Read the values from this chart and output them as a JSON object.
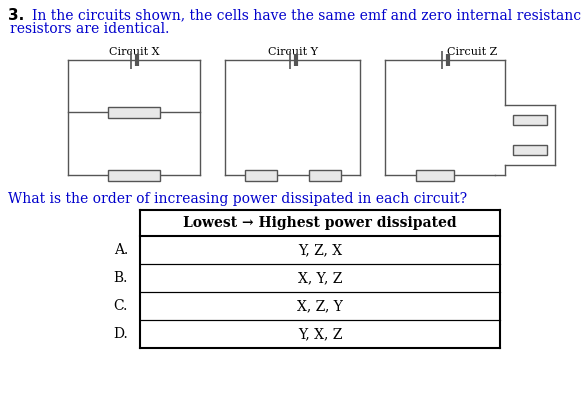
{
  "question_number": "3.",
  "question_text_blue": "In the circuits shown, the cells have the same emf and zero internal resistance. All",
  "question_text_blue2": "resistors are identical.",
  "circuit_labels": [
    "Circuit X",
    "Circuit Y",
    "Circuit Z"
  ],
  "sub_question": "What is the order of increasing power dissipated in each circuit?",
  "table_header": "Lowest → Highest power dissipated",
  "options": [
    "A.",
    "B.",
    "C.",
    "D."
  ],
  "answers": [
    "Y, Z, X",
    "X, Y, Z",
    "X, Z, Y",
    "Y, X, Z"
  ],
  "bg_color": "#ffffff",
  "text_color": "#000000",
  "blue_color": "#0000cc",
  "black_color": "#000000",
  "line_color": "#555555",
  "resistor_fill": "#e8e8e8",
  "resistor_border": "#555555"
}
